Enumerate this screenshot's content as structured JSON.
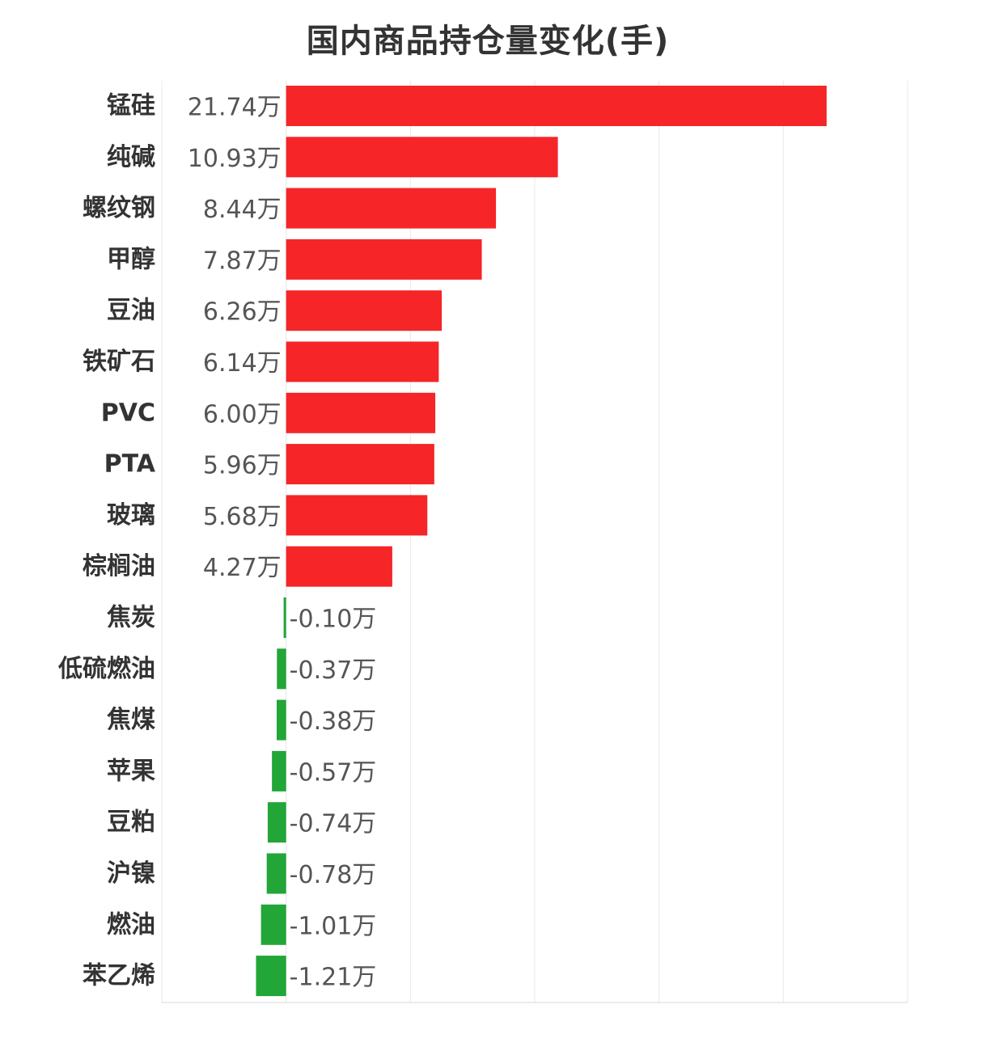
{
  "chart_data": {
    "type": "bar",
    "orientation": "horizontal",
    "title": "国内商品持仓量变化(手)",
    "unit_suffix": "万",
    "xlim": [
      -5,
      25
    ],
    "grid": true,
    "categories": [
      "锰硅",
      "纯碱",
      "螺纹钢",
      "甲醇",
      "豆油",
      "铁矿石",
      "PVC",
      "PTA",
      "玻璃",
      "棕榈油",
      "焦炭",
      "低硫燃油",
      "焦煤",
      "苹果",
      "豆粕",
      "沪镍",
      "燃油",
      "苯乙烯"
    ],
    "values": [
      21.74,
      10.93,
      8.44,
      7.87,
      6.26,
      6.14,
      6.0,
      5.96,
      5.68,
      4.27,
      -0.1,
      -0.37,
      -0.38,
      -0.57,
      -0.74,
      -0.78,
      -1.01,
      -1.21
    ],
    "value_labels": [
      "21.74万",
      "10.93万",
      "8.44万",
      "7.87万",
      "6.26万",
      "6.14万",
      "6.00万",
      "5.96万",
      "5.68万",
      "4.27万",
      "-0.10万",
      "-0.37万",
      "-0.38万",
      "-0.57万",
      "-0.74万",
      "-0.78万",
      "-1.01万",
      "-1.21万"
    ],
    "colors": {
      "positive": "#f52528",
      "negative": "#21a637",
      "grid": "#e8e8e8",
      "axis": "#d8d8d8"
    }
  }
}
